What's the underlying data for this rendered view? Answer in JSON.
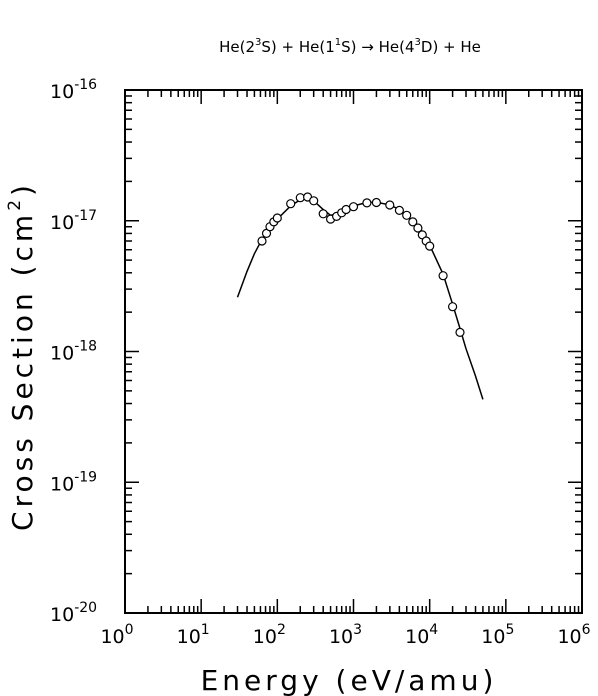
{
  "chart_data": {
    "type": "scatter",
    "title": "He(2³S) + He(1¹S) → He(4³D) + He",
    "title_parts": {
      "p1": "He(2",
      "p1_sup": "3",
      "p2": "S) + He(1",
      "p2_sup": "1",
      "p3": "S) → He(4",
      "p3_sup": "3",
      "p4": "D) + He"
    },
    "xlabel": "Energy (eV/amu)",
    "ylabel": "Cross Section (cm²)",
    "ylabel_parts": {
      "main": "Cross Section (cm",
      "sup": "2",
      "end": ")"
    },
    "x_scale": "log",
    "y_scale": "log",
    "xlim": [
      1,
      1000000
    ],
    "ylim": [
      1e-20,
      1e-16
    ],
    "grid": false,
    "x_ticks": [
      {
        "base": "10",
        "exp": "0",
        "value": 1
      },
      {
        "base": "10",
        "exp": "1",
        "value": 10
      },
      {
        "base": "10",
        "exp": "2",
        "value": 100
      },
      {
        "base": "10",
        "exp": "3",
        "value": 1000
      },
      {
        "base": "10",
        "exp": "4",
        "value": 10000
      },
      {
        "base": "10",
        "exp": "5",
        "value": 100000
      },
      {
        "base": "10",
        "exp": "6",
        "value": 1000000
      }
    ],
    "y_ticks": [
      {
        "base": "10",
        "exp": "-20",
        "value": 1e-20
      },
      {
        "base": "10",
        "exp": "-19",
        "value": 1e-19
      },
      {
        "base": "10",
        "exp": "-18",
        "value": 1e-18
      },
      {
        "base": "10",
        "exp": "-17",
        "value": 1e-17
      },
      {
        "base": "10",
        "exp": "-16",
        "value": 1e-16
      }
    ],
    "series": [
      {
        "kind": "points",
        "marker": "open-circle",
        "x": [
          63,
          72,
          80,
          90,
          100,
          150,
          200,
          250,
          300,
          400,
          500,
          600,
          700,
          800,
          1000,
          1500,
          2000,
          3000,
          4000,
          5000,
          6000,
          7000,
          8000,
          9000,
          10000,
          15000,
          20000,
          25000
        ],
        "y": [
          7e-18,
          8e-18,
          9e-18,
          9.8e-18,
          1.05e-17,
          1.35e-17,
          1.5e-17,
          1.52e-17,
          1.42e-17,
          1.13e-17,
          1.03e-17,
          1.08e-17,
          1.15e-17,
          1.22e-17,
          1.28e-17,
          1.37e-17,
          1.38e-17,
          1.32e-17,
          1.2e-17,
          1.1e-17,
          9.8e-18,
          8.8e-18,
          7.8e-18,
          7e-18,
          6.4e-18,
          3.8e-18,
          2.2e-18,
          1.4e-18
        ]
      },
      {
        "kind": "line",
        "x": [
          30,
          40,
          50,
          63,
          80,
          100,
          150,
          200,
          250,
          300,
          400,
          500,
          600,
          700,
          800,
          1000,
          1500,
          2000,
          3000,
          4000,
          5000,
          7000,
          10000,
          15000,
          20000,
          25000,
          30000,
          40000,
          50000
        ],
        "y": [
          2.6e-18,
          4.1e-18,
          5.6e-18,
          7.2e-18,
          8.9e-18,
          1.03e-17,
          1.3e-17,
          1.45e-17,
          1.48e-17,
          1.42e-17,
          1.22e-17,
          1.1e-17,
          1.12e-17,
          1.17e-17,
          1.23e-17,
          1.3e-17,
          1.38e-17,
          1.39e-17,
          1.32e-17,
          1.22e-17,
          1.1e-17,
          9e-18,
          6.5e-18,
          3.9e-18,
          2.3e-18,
          1.5e-18,
          1.05e-18,
          6.5e-19,
          4.3e-19
        ]
      }
    ]
  }
}
